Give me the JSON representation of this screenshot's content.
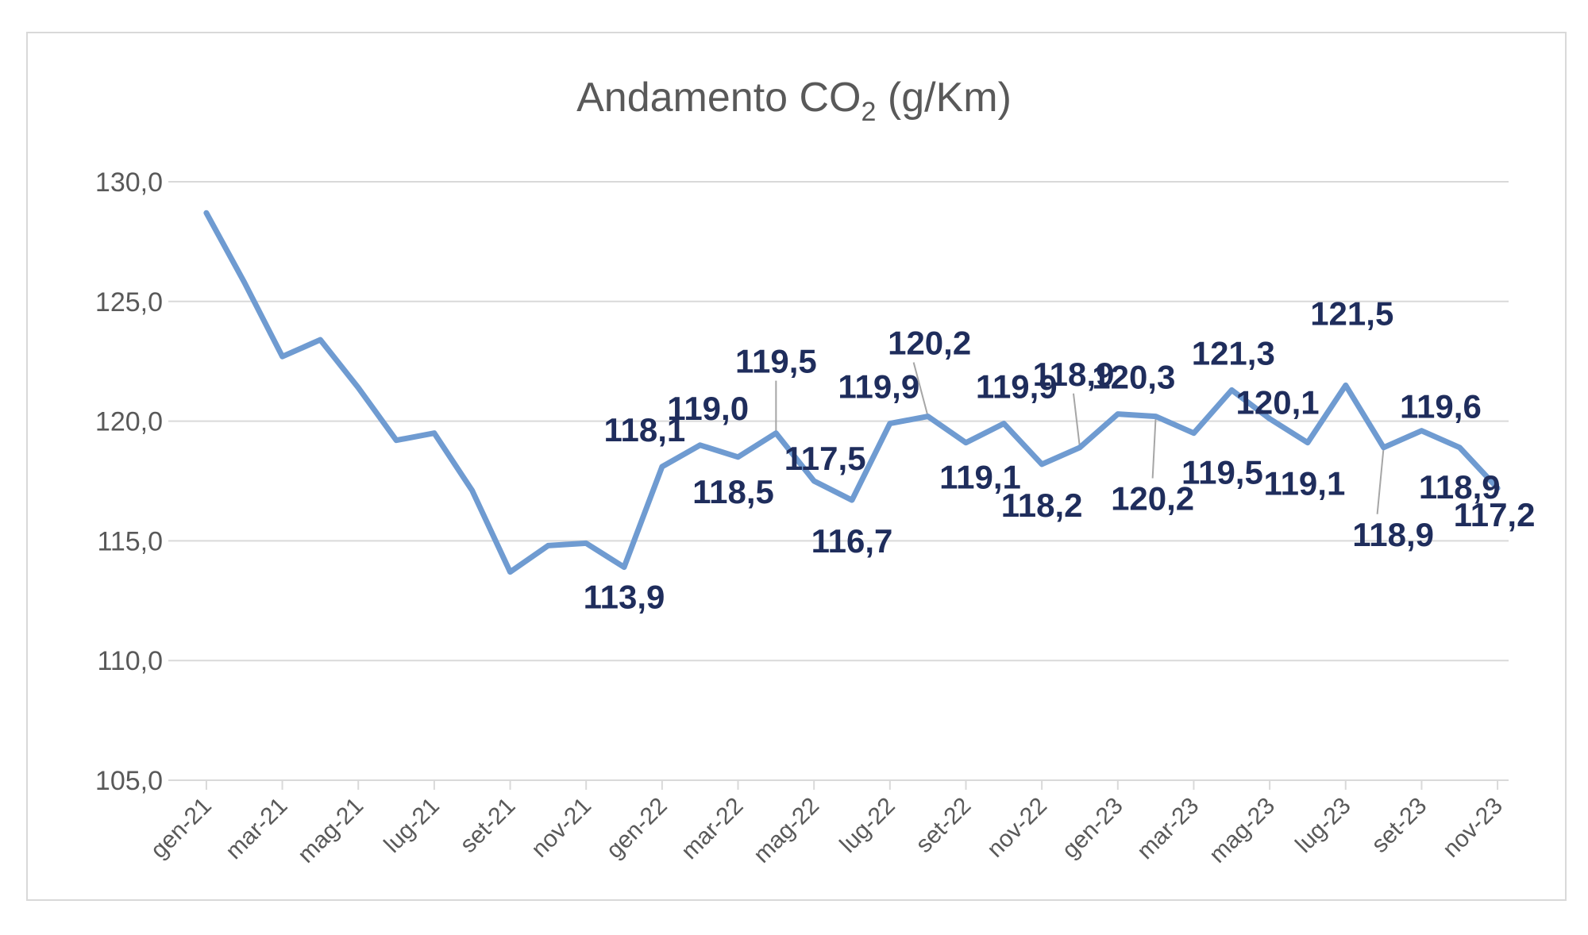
{
  "chart_data": {
    "type": "line",
    "title_main": "Andamento CO",
    "title_sub": "2",
    "title_unit": " (g/Km)",
    "ylim": [
      105,
      130
    ],
    "yticks": [
      "105,0",
      "110,0",
      "115,0",
      "120,0",
      "125,0",
      "130,0"
    ],
    "grid": true,
    "legend": "none",
    "line_color": "#6f9bd1",
    "label_color": "#1f2d5c",
    "xtick_labels": [
      "gen-21",
      "mar-21",
      "mag-21",
      "lug-21",
      "set-21",
      "nov-21",
      "gen-22",
      "mar-22",
      "mag-22",
      "lug-22",
      "set-22",
      "nov-22",
      "gen-23",
      "mar-23",
      "mag-23",
      "lug-23",
      "set-23",
      "nov-23"
    ],
    "series": [
      {
        "values": [
          128.7,
          125.8,
          122.7,
          123.4,
          121.4,
          119.2,
          119.5,
          117.1,
          113.7,
          114.8,
          114.9,
          113.9,
          118.1,
          119.0,
          118.5,
          119.5,
          117.5,
          116.7,
          119.9,
          120.2,
          119.1,
          119.9,
          118.2,
          118.9,
          120.3,
          120.2,
          119.5,
          121.3,
          120.1,
          119.1,
          121.5,
          118.9,
          119.6,
          118.9,
          117.2
        ],
        "data_labels": [
          {
            "i": 11,
            "text": "113,9"
          },
          {
            "i": 12,
            "text": "118,1"
          },
          {
            "i": 13,
            "text": "119,0"
          },
          {
            "i": 14,
            "text": "118,5"
          },
          {
            "i": 15,
            "text": "119,5"
          },
          {
            "i": 16,
            "text": "117,5"
          },
          {
            "i": 17,
            "text": "116,7"
          },
          {
            "i": 18,
            "text": "119,9"
          },
          {
            "i": 19,
            "text": "120,2"
          },
          {
            "i": 20,
            "text": "119,1"
          },
          {
            "i": 21,
            "text": "119,9"
          },
          {
            "i": 22,
            "text": "118,2"
          },
          {
            "i": 23,
            "text": "118,9"
          },
          {
            "i": 24,
            "text": "120,3"
          },
          {
            "i": 25,
            "text": "120,2"
          },
          {
            "i": 26,
            "text": "119,5"
          },
          {
            "i": 27,
            "text": "121,3"
          },
          {
            "i": 28,
            "text": "120,1"
          },
          {
            "i": 29,
            "text": "119,1"
          },
          {
            "i": 30,
            "text": "121,5"
          },
          {
            "i": 31,
            "text": "118,9"
          },
          {
            "i": 32,
            "text": "119,6"
          },
          {
            "i": 33,
            "text": "118,9"
          },
          {
            "i": 34,
            "text": "117,2"
          }
        ]
      }
    ]
  }
}
